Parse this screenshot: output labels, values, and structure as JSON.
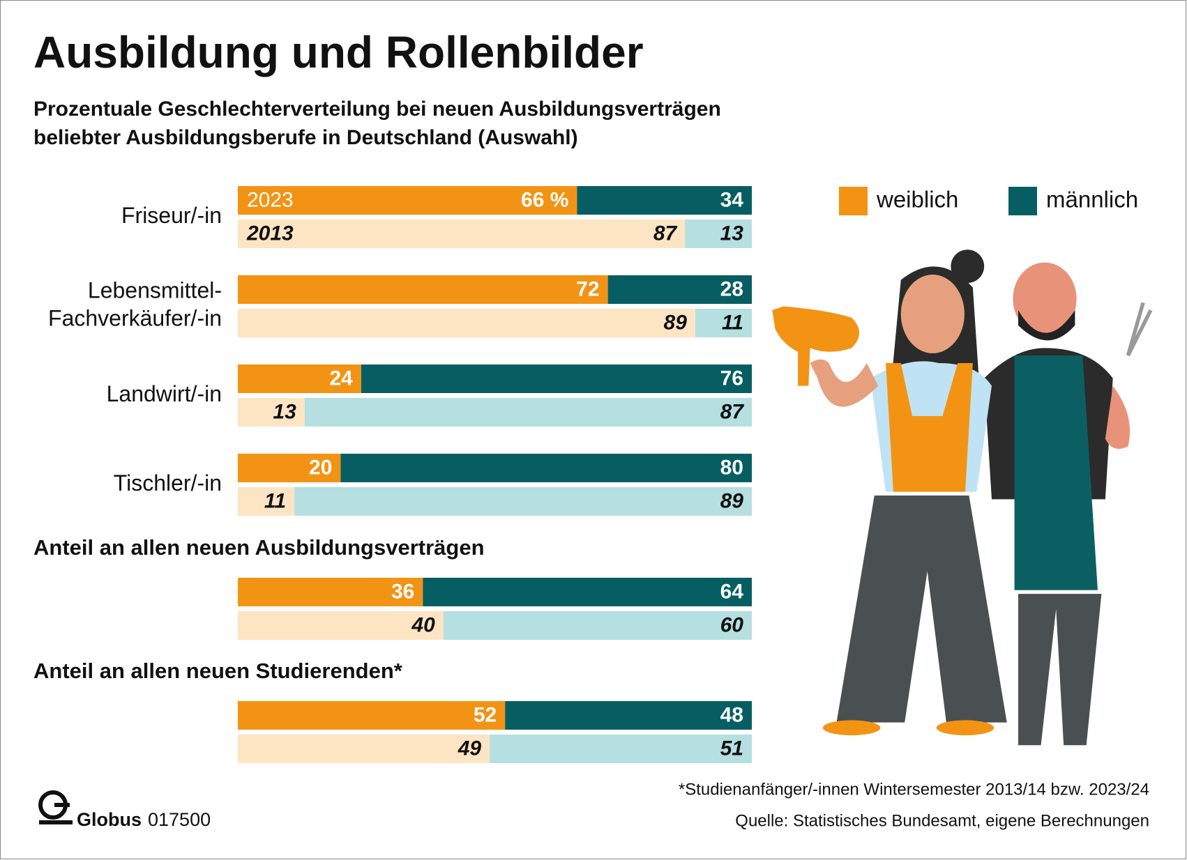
{
  "chart_data": {
    "type": "stacked-bar",
    "title": "Ausbildung und Rollenbilder",
    "subtitle": [
      "Prozentuale Geschlechterverteilung bei neuen Ausbildungsverträgen",
      "beliebter Ausbildungsberufe in Deutschland (Auswahl)"
    ],
    "categories": [
      "Friseur/-in",
      "Lebensmittel-Fachverkäufer/-in",
      "Landwirt/-in",
      "Tischler/-in",
      null,
      null
    ],
    "headings": [
      null,
      null,
      null,
      null,
      "Anteil an allen neuen Ausbildungsverträgen",
      "Anteil an allen neuen Studierenden*"
    ],
    "xlim": [
      0,
      100
    ],
    "rows": [
      {
        "label": "2023",
        "series": [
          {
            "name": "weiblich",
            "color": "#f39314",
            "values": [
              66,
              72,
              24,
              20,
              36,
              52
            ],
            "value_labels": [
              "66 %",
              "72",
              "24",
              "20",
              "36",
              "52"
            ]
          },
          {
            "name": "männlich",
            "color": "#065e63",
            "values": [
              34,
              28,
              76,
              80,
              64,
              48
            ]
          }
        ]
      },
      {
        "label": "2013",
        "series": [
          {
            "name": "weiblich",
            "color": "#fde5c4",
            "values": [
              87,
              89,
              13,
              11,
              40,
              49
            ]
          },
          {
            "name": "männlich",
            "color": "#b5dfe0",
            "values": [
              13,
              11,
              87,
              89,
              60,
              51
            ]
          }
        ]
      }
    ],
    "legend": "top-right",
    "footnote": "*Studienanfänger/-innen Wintersemester 2013/14 bzw. 2023/24",
    "source": "Quelle: Statistisches Bundesamt, eigene Berechnungen",
    "brand": "Globus",
    "code": "017500"
  }
}
